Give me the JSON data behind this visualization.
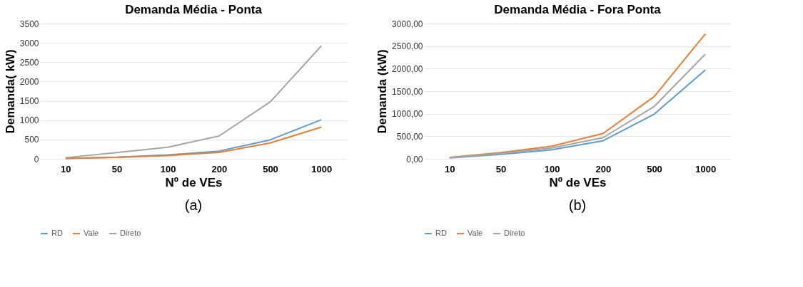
{
  "chart_data": [
    {
      "type": "line",
      "title": "Demanda Média - Ponta",
      "xlabel": "Nº de VEs",
      "ylabel": "Demanda( kW)",
      "categories": [
        "10",
        "50",
        "100",
        "200",
        "500",
        "1000"
      ],
      "ylim": [
        0,
        3500
      ],
      "yticks": [
        0,
        500,
        1000,
        1500,
        2000,
        2500,
        3000,
        3500
      ],
      "grid": "y",
      "legend": "bottom",
      "annotations": [
        "(a)"
      ],
      "series": [
        {
          "name": "RD",
          "color": "#5b9bd5",
          "values": [
            10,
            40,
            100,
            200,
            490,
            1010
          ]
        },
        {
          "name": "Vale",
          "color": "#ed7d31",
          "values": [
            8,
            35,
            85,
            165,
            410,
            820
          ]
        },
        {
          "name": "Direto",
          "color": "#a5a5a5",
          "values": [
            30,
            160,
            300,
            590,
            1470,
            2920
          ]
        }
      ]
    },
    {
      "type": "line",
      "title": "Demanda Média - Fora Ponta",
      "xlabel": "Nº de VEs",
      "ylabel": "Demanda (kW)",
      "categories": [
        "10",
        "50",
        "100",
        "200",
        "500",
        "1000"
      ],
      "ylim": [
        0,
        3000
      ],
      "yticks": [
        {
          "value": 0,
          "label": "0,00"
        },
        {
          "value": 500,
          "label": "500,00"
        },
        {
          "value": 1000,
          "label": "1000,00"
        },
        {
          "value": 1500,
          "label": "1500,00"
        },
        {
          "value": 2000,
          "label": "2000,00"
        },
        {
          "value": 2500,
          "label": "2500,00"
        },
        {
          "value": 3000,
          "label": "3000,00"
        }
      ],
      "grid": "y",
      "legend": "bottom",
      "annotations": [
        "(b)"
      ],
      "series": [
        {
          "name": "RD",
          "color": "#5b9bd5",
          "values": [
            20,
            100,
            200,
            400,
            990,
            1970
          ]
        },
        {
          "name": "Vale",
          "color": "#ed7d31",
          "values": [
            30,
            140,
            280,
            560,
            1380,
            2770
          ]
        },
        {
          "name": "Direto",
          "color": "#a5a5a5",
          "values": [
            25,
            120,
            240,
            470,
            1160,
            2320
          ]
        }
      ]
    }
  ]
}
